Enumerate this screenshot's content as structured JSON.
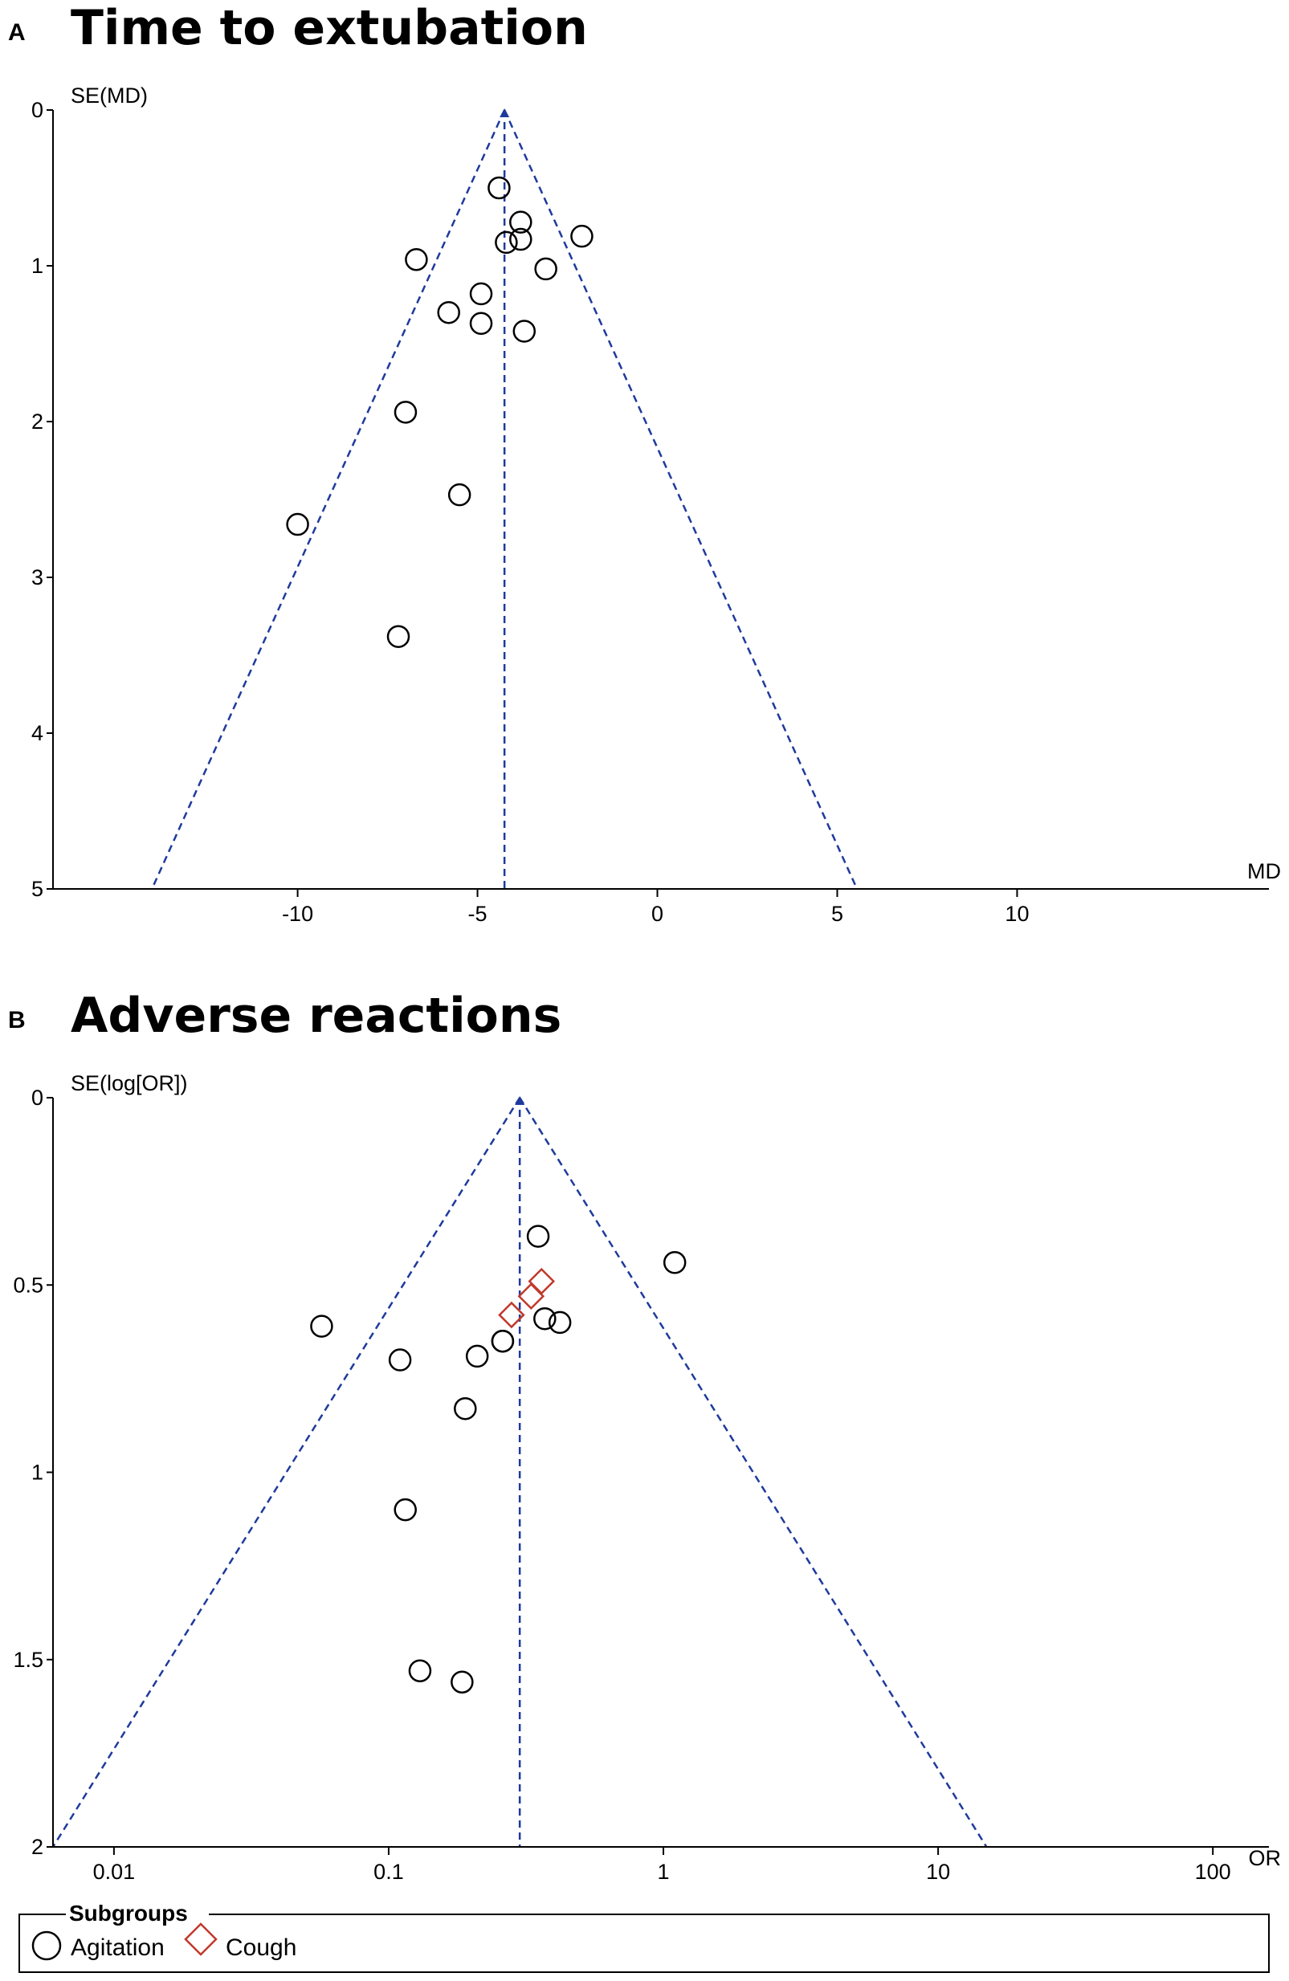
{
  "chart_data": [
    {
      "panel": "A",
      "type": "scatter",
      "title": "Time to extubation",
      "xlabel": "MD",
      "ylabel": "SE(MD)",
      "xscale": "linear",
      "xlim": [
        -16.8,
        17.0
      ],
      "ylim": [
        0,
        5
      ],
      "y_inverted": true,
      "xticks": [
        -10,
        -5,
        0,
        5,
        10
      ],
      "xtick_labels": [
        "-10",
        "-5",
        "0",
        "5",
        "10"
      ],
      "yticks": [
        0,
        1,
        2,
        3,
        4,
        5
      ],
      "ytick_labels": [
        "0",
        "1",
        "2",
        "3",
        "4",
        "5"
      ],
      "pooled_estimate": -4.25,
      "funnel": {
        "apex": [
          -4.25,
          0
        ],
        "left_base": [
          -14.05,
          5
        ],
        "right_base": [
          5.55,
          5
        ]
      },
      "line_color": "#1f3a9c",
      "series": [
        {
          "marker": "circle",
          "color": "#000000",
          "points": [
            {
              "x": -4.4,
              "y": 0.5
            },
            {
              "x": -3.8,
              "y": 0.72
            },
            {
              "x": -2.1,
              "y": 0.81
            },
            {
              "x": -3.8,
              "y": 0.83
            },
            {
              "x": -4.2,
              "y": 0.85
            },
            {
              "x": -6.7,
              "y": 0.96
            },
            {
              "x": -3.1,
              "y": 1.02
            },
            {
              "x": -4.9,
              "y": 1.18
            },
            {
              "x": -5.8,
              "y": 1.3
            },
            {
              "x": -4.9,
              "y": 1.37
            },
            {
              "x": -3.7,
              "y": 1.42
            },
            {
              "x": -7.0,
              "y": 1.94
            },
            {
              "x": -5.5,
              "y": 2.47
            },
            {
              "x": -10.0,
              "y": 2.66
            },
            {
              "x": -7.2,
              "y": 3.38
            }
          ]
        }
      ]
    },
    {
      "panel": "B",
      "type": "scatter",
      "title": "Adverse reactions",
      "xlabel": "OR",
      "ylabel": "SE(log[OR])",
      "xscale": "log",
      "xlim": [
        0.006,
        160
      ],
      "ylim": [
        0,
        2
      ],
      "y_inverted": true,
      "xticks": [
        0.01,
        0.1,
        1,
        10,
        100
      ],
      "xtick_labels": [
        "0.01",
        "0.1",
        "1",
        "10",
        "100"
      ],
      "yticks": [
        0,
        0.5,
        1,
        1.5,
        2
      ],
      "ytick_labels": [
        "0",
        "0.5",
        "1",
        "1.5",
        "2"
      ],
      "pooled_estimate": 0.3,
      "funnel": {
        "apex": [
          0.3,
          0
        ],
        "left_base": [
          0.006,
          2
        ],
        "right_base": [
          15,
          2
        ]
      },
      "line_color": "#1f3a9c",
      "series": [
        {
          "name": "Agitation",
          "marker": "circle",
          "color": "#000000",
          "points": [
            {
              "x": 0.35,
              "y": 0.37
            },
            {
              "x": 1.1,
              "y": 0.44
            },
            {
              "x": 0.37,
              "y": 0.59
            },
            {
              "x": 0.42,
              "y": 0.6
            },
            {
              "x": 0.057,
              "y": 0.61
            },
            {
              "x": 0.26,
              "y": 0.65
            },
            {
              "x": 0.26,
              "y": 0.65
            },
            {
              "x": 0.21,
              "y": 0.69
            },
            {
              "x": 0.11,
              "y": 0.7
            },
            {
              "x": 0.19,
              "y": 0.83
            },
            {
              "x": 0.115,
              "y": 1.1
            },
            {
              "x": 0.13,
              "y": 1.53
            },
            {
              "x": 0.185,
              "y": 1.56
            }
          ]
        },
        {
          "name": "Cough",
          "marker": "diamond",
          "color": "#c0392b",
          "points": [
            {
              "x": 0.36,
              "y": 0.49
            },
            {
              "x": 0.33,
              "y": 0.53
            },
            {
              "x": 0.28,
              "y": 0.58
            }
          ]
        }
      ]
    }
  ],
  "legend": {
    "title": "Subgroups",
    "items": [
      {
        "label": "Agitation",
        "marker": "circle",
        "color": "#000000"
      },
      {
        "label": "Cough",
        "marker": "diamond",
        "color": "#c0392b"
      }
    ]
  }
}
